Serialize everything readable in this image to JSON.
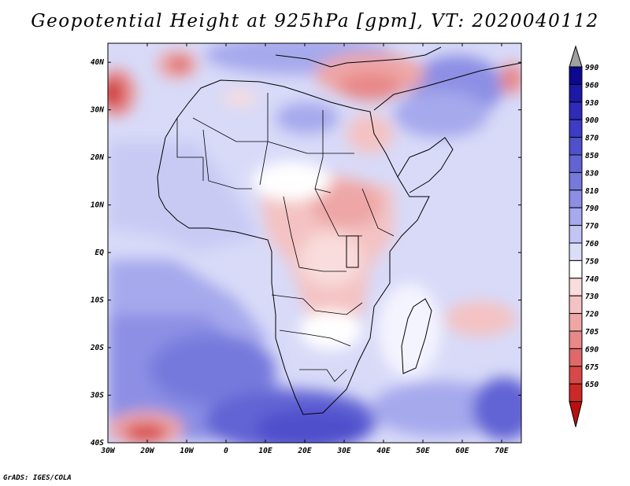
{
  "title": "Geopotential Height at 925hPa [gpm], VT: 2020040112",
  "credit": "GrADS: IGES/COLA",
  "map": {
    "variable": "Geopotential Height",
    "level": "925hPa",
    "units": "gpm",
    "valid_time": "2020040112",
    "lon_range": [
      -30,
      75
    ],
    "lat_range": [
      -40,
      44
    ],
    "lon_ticks": [
      {
        "value": -30,
        "label": "30W"
      },
      {
        "value": -20,
        "label": "20W"
      },
      {
        "value": -10,
        "label": "10W"
      },
      {
        "value": 0,
        "label": "0"
      },
      {
        "value": 10,
        "label": "10E"
      },
      {
        "value": 20,
        "label": "20E"
      },
      {
        "value": 30,
        "label": "30E"
      },
      {
        "value": 40,
        "label": "40E"
      },
      {
        "value": 50,
        "label": "50E"
      },
      {
        "value": 60,
        "label": "60E"
      },
      {
        "value": 70,
        "label": "70E"
      }
    ],
    "lat_ticks": [
      {
        "value": 40,
        "label": "40N"
      },
      {
        "value": 30,
        "label": "30N"
      },
      {
        "value": 20,
        "label": "20N"
      },
      {
        "value": 10,
        "label": "10N"
      },
      {
        "value": 0,
        "label": "EQ"
      },
      {
        "value": -10,
        "label": "10S"
      },
      {
        "value": -20,
        "label": "20S"
      },
      {
        "value": -30,
        "label": "30S"
      },
      {
        "value": -40,
        "label": "40S"
      }
    ]
  },
  "colorbar": {
    "levels": [
      "990",
      "960",
      "930",
      "900",
      "870",
      "850",
      "830",
      "810",
      "790",
      "770",
      "760",
      "750",
      "740",
      "730",
      "720",
      "705",
      "690",
      "675",
      "650"
    ],
    "colors": [
      "#0d0890",
      "#1e18a8",
      "#2f2ab8",
      "#3e3cc4",
      "#4f50cc",
      "#6264d4",
      "#7679dc",
      "#8c8fe4",
      "#a6a9ec",
      "#c2c4f3",
      "#dcdef9",
      "#ffffff",
      "#f9dcdc",
      "#f4c2c2",
      "#eea6a6",
      "#e88888",
      "#e06868",
      "#d84848",
      "#cc2828",
      "#b80f10"
    ],
    "top_arrow_color": "#a0a0a0"
  }
}
